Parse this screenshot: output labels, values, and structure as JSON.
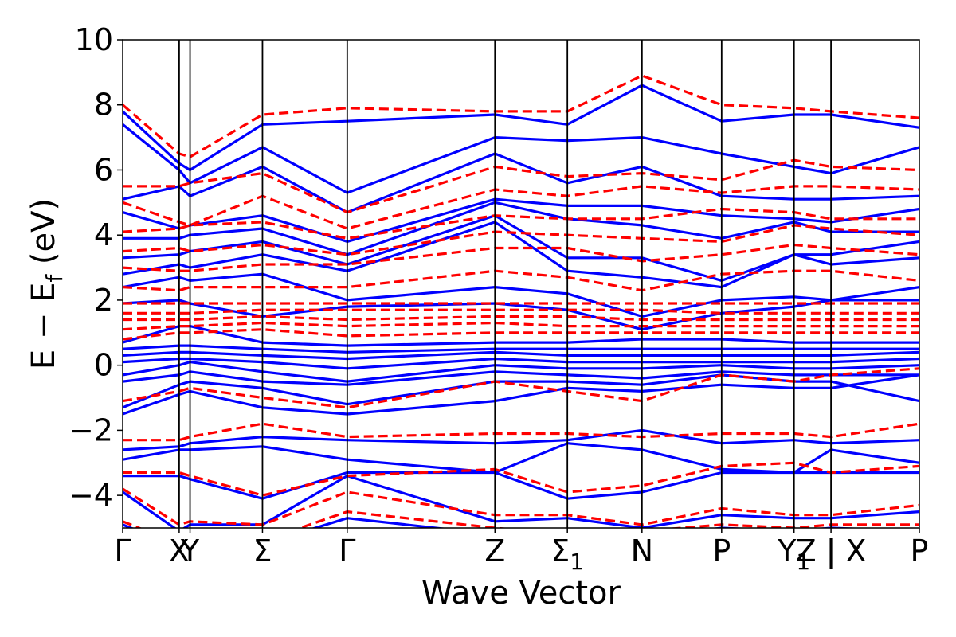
{
  "chart_data": {
    "type": "line",
    "title": "",
    "xlabel": "Wave Vector",
    "ylabel_parts": [
      "E − E",
      "f",
      " (eV)"
    ],
    "ylim": [
      -5,
      10
    ],
    "yticks": [
      {
        "value": 10,
        "label": "10"
      },
      {
        "value": 8,
        "label": "8"
      },
      {
        "value": 6,
        "label": "6"
      },
      {
        "value": 4,
        "label": "4"
      },
      {
        "value": 2,
        "label": "2"
      },
      {
        "value": 0,
        "label": "0"
      },
      {
        "value": -2,
        "label": "−2"
      },
      {
        "value": -4,
        "label": "−4"
      }
    ],
    "xlim": [
      0,
      11.0
    ],
    "kpoints": [
      {
        "position": 0.0,
        "label": "Γ",
        "sub": ""
      },
      {
        "position": 0.78,
        "label": "X",
        "sub": ""
      },
      {
        "position": 0.93,
        "label": "Y",
        "sub": ""
      },
      {
        "position": 1.93,
        "label": "Σ",
        "sub": ""
      },
      {
        "position": 3.1,
        "label": "Γ",
        "sub": ""
      },
      {
        "position": 5.14,
        "label": "Z",
        "sub": ""
      },
      {
        "position": 6.14,
        "label": "Σ",
        "sub": "1"
      },
      {
        "position": 7.17,
        "label": "N",
        "sub": ""
      },
      {
        "position": 8.27,
        "label": "P",
        "sub": ""
      },
      {
        "position": 9.27,
        "label": "Y",
        "sub": "1"
      },
      {
        "position": 9.78,
        "label": "Z | X",
        "sub": ""
      },
      {
        "position": 11.0,
        "label": "P",
        "sub": ""
      }
    ],
    "series_styles": [
      {
        "color": "#0000ff",
        "dash": "solid"
      },
      {
        "color": "#ff0000",
        "dash": "dashed"
      }
    ],
    "series": [
      {
        "x": [
          0,
          0.78,
          0.93,
          1.93,
          3.1,
          5.14,
          6.14,
          7.17,
          8.27,
          9.27,
          9.78,
          11.0
        ],
        "bands": [
          [
            -4.9,
            -5.6,
            -5.6,
            -5.5,
            -4.7,
            -5.2,
            -5.3,
            -5.3,
            -5.0,
            -5.1,
            -5.0,
            -5.1
          ],
          [
            -3.9,
            -5.1,
            -4.9,
            -4.9,
            -3.4,
            -4.8,
            -4.7,
            -5.0,
            -4.6,
            -4.7,
            -4.7,
            -4.5
          ],
          [
            -3.4,
            -3.4,
            -3.5,
            -4.1,
            -3.3,
            -3.3,
            -4.1,
            -3.9,
            -3.3,
            -3.3,
            -3.3,
            -3.3
          ],
          [
            -2.9,
            -2.6,
            -2.6,
            -2.5,
            -2.9,
            -3.3,
            -2.4,
            -2.6,
            -3.2,
            -3.3,
            -2.6,
            -3.0
          ],
          [
            -2.6,
            -2.5,
            -2.4,
            -2.2,
            -2.3,
            -2.4,
            -2.3,
            -2.0,
            -2.4,
            -2.3,
            -2.4,
            -2.3
          ],
          [
            -1.5,
            -0.9,
            -0.8,
            -1.3,
            -1.5,
            -1.1,
            -0.7,
            -0.8,
            -0.6,
            -0.7,
            -0.7,
            -0.3
          ],
          [
            -1.3,
            -0.6,
            -0.5,
            -0.7,
            -1.2,
            -0.5,
            -0.5,
            -0.6,
            -0.3,
            -0.5,
            -0.5,
            -1.1
          ],
          [
            -0.5,
            -0.3,
            -0.2,
            -0.5,
            -0.6,
            -0.2,
            -0.3,
            -0.4,
            -0.2,
            -0.3,
            -0.3,
            -0.3
          ],
          [
            -0.3,
            0.0,
            0.1,
            -0.2,
            -0.5,
            0.0,
            -0.1,
            -0.1,
            0.0,
            -0.1,
            -0.1,
            0.0
          ],
          [
            0.1,
            0.2,
            0.2,
            0.1,
            -0.1,
            0.2,
            0.1,
            0.1,
            0.1,
            0.1,
            0.1,
            0.2
          ],
          [
            0.3,
            0.4,
            0.4,
            0.3,
            0.2,
            0.4,
            0.3,
            0.3,
            0.3,
            0.3,
            0.3,
            0.4
          ],
          [
            0.5,
            0.6,
            0.6,
            0.5,
            0.4,
            0.5,
            0.5,
            0.5,
            0.5,
            0.5,
            0.5,
            0.5
          ],
          [
            0.7,
            1.2,
            1.2,
            0.7,
            0.6,
            0.7,
            0.7,
            0.8,
            0.8,
            0.7,
            0.7,
            0.7
          ],
          [
            1.9,
            2.0,
            1.9,
            1.5,
            1.8,
            1.9,
            1.7,
            1.1,
            1.6,
            1.8,
            2.0,
            2.0
          ],
          [
            2.4,
            2.7,
            2.6,
            2.8,
            2.0,
            2.4,
            2.2,
            1.5,
            2.0,
            2.1,
            2.0,
            2.4
          ],
          [
            2.8,
            3.1,
            3.0,
            3.4,
            2.9,
            4.4,
            2.9,
            2.7,
            2.4,
            3.4,
            3.1,
            3.3
          ],
          [
            3.3,
            3.4,
            3.5,
            3.8,
            3.1,
            4.6,
            3.3,
            3.3,
            2.6,
            3.4,
            3.4,
            3.8
          ],
          [
            3.9,
            3.9,
            4.0,
            4.2,
            3.4,
            5.0,
            4.5,
            4.3,
            3.9,
            4.4,
            4.1,
            4.1
          ],
          [
            4.7,
            4.2,
            4.3,
            4.6,
            3.8,
            5.1,
            4.9,
            4.9,
            4.6,
            4.5,
            4.4,
            4.8
          ],
          [
            5.1,
            5.5,
            5.2,
            6.1,
            4.7,
            6.5,
            5.6,
            6.1,
            5.2,
            5.1,
            5.1,
            5.2
          ],
          [
            7.4,
            6.0,
            5.6,
            6.7,
            5.3,
            7.0,
            6.9,
            7.0,
            6.5,
            6.1,
            5.9,
            6.7
          ],
          [
            7.8,
            6.2,
            6.0,
            7.4,
            7.5,
            7.7,
            7.4,
            8.6,
            7.5,
            7.7,
            7.7,
            7.3
          ]
        ]
      },
      {
        "x": [
          0,
          0.78,
          0.93,
          1.93,
          3.1,
          5.14,
          6.14,
          7.17,
          8.27,
          9.27,
          9.78,
          11.0
        ],
        "bands": [
          [
            -4.8,
            -5.5,
            -5.5,
            -5.4,
            -4.5,
            -5.0,
            -5.2,
            -5.1,
            -4.9,
            -5.0,
            -4.9,
            -4.9
          ],
          [
            -3.8,
            -4.9,
            -4.8,
            -4.9,
            -3.9,
            -4.6,
            -4.6,
            -4.9,
            -4.4,
            -4.6,
            -4.6,
            -4.3
          ],
          [
            -3.3,
            -3.3,
            -3.4,
            -4.0,
            -3.4,
            -3.2,
            -3.9,
            -3.7,
            -3.1,
            -3.0,
            -3.3,
            -3.1
          ],
          [
            -2.3,
            -2.3,
            -2.2,
            -1.8,
            -2.2,
            -2.1,
            -2.1,
            -2.2,
            -2.1,
            -2.1,
            -2.2,
            -1.8
          ],
          [
            -1.1,
            -0.8,
            -0.7,
            -1.0,
            -1.3,
            -0.5,
            -0.8,
            -1.1,
            -0.3,
            -0.5,
            -0.3,
            -0.1
          ],
          [
            0.8,
            1.0,
            1.0,
            1.1,
            0.9,
            1.0,
            1.0,
            1.0,
            1.0,
            1.0,
            1.0,
            1.0
          ],
          [
            1.1,
            1.2,
            1.2,
            1.3,
            1.2,
            1.3,
            1.2,
            1.2,
            1.2,
            1.2,
            1.2,
            1.2
          ],
          [
            1.4,
            1.4,
            1.4,
            1.5,
            1.4,
            1.5,
            1.5,
            1.4,
            1.4,
            1.4,
            1.4,
            1.4
          ],
          [
            1.6,
            1.6,
            1.6,
            1.7,
            1.7,
            1.7,
            1.7,
            1.7,
            1.6,
            1.6,
            1.6,
            1.6
          ],
          [
            1.9,
            1.9,
            1.9,
            1.9,
            1.9,
            1.9,
            1.9,
            1.9,
            1.9,
            1.9,
            1.9,
            1.9
          ],
          [
            2.4,
            2.3,
            2.4,
            2.4,
            2.4,
            2.9,
            2.7,
            2.3,
            2.8,
            2.9,
            2.9,
            2.6
          ],
          [
            3.0,
            2.9,
            2.9,
            3.1,
            3.1,
            3.6,
            3.6,
            3.2,
            3.4,
            3.7,
            3.6,
            3.4
          ],
          [
            3.5,
            3.6,
            3.5,
            3.7,
            3.4,
            4.1,
            4.0,
            3.9,
            3.8,
            4.3,
            4.2,
            4.0
          ],
          [
            4.1,
            4.2,
            4.3,
            4.4,
            3.9,
            4.6,
            4.5,
            4.5,
            4.8,
            4.7,
            4.5,
            4.5
          ],
          [
            5.0,
            4.4,
            4.3,
            5.2,
            4.2,
            5.4,
            5.2,
            5.5,
            5.3,
            5.5,
            5.5,
            5.4
          ],
          [
            5.5,
            5.5,
            5.6,
            5.9,
            4.7,
            6.1,
            5.8,
            5.9,
            5.7,
            6.3,
            6.1,
            6.0
          ],
          [
            8.0,
            6.5,
            6.4,
            7.7,
            7.9,
            7.8,
            7.8,
            8.9,
            8.0,
            7.9,
            7.8,
            7.6
          ]
        ]
      }
    ]
  }
}
